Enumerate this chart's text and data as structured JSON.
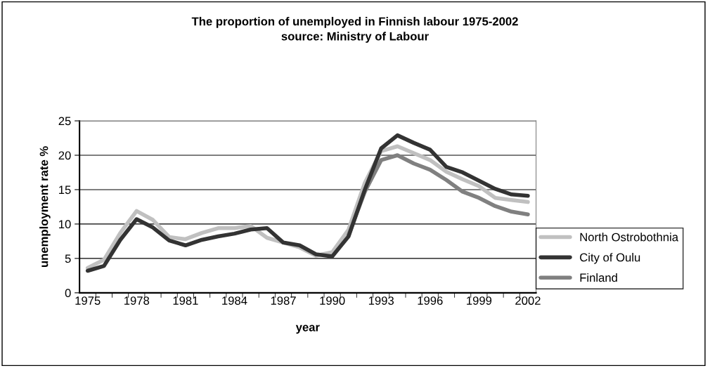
{
  "chart_data": {
    "type": "line",
    "title": "The proportion of unemployed in Finnish labour 1975-2002",
    "subtitle": "source: Ministry of Labour",
    "xlabel": "year",
    "ylabel": "unemployment rate %",
    "categories": [
      "1975",
      null,
      null,
      "1978",
      null,
      null,
      "1981",
      null,
      null,
      "1984",
      null,
      null,
      "1987",
      null,
      null,
      "1990",
      null,
      null,
      "1993",
      null,
      null,
      "1996",
      null,
      null,
      "1999",
      null,
      null,
      "2002"
    ],
    "series": [
      {
        "name": "North Ostrobothnia",
        "color": "#c0c0c0",
        "values": [
          3.6,
          4.8,
          8.7,
          11.9,
          10.6,
          8.1,
          7.8,
          8.7,
          9.4,
          9.4,
          9.7,
          8.0,
          7.3,
          6.6,
          5.4,
          5.9,
          9.2,
          16.0,
          20.6,
          21.3,
          20.3,
          19.3,
          17.6,
          16.5,
          15.5,
          13.8,
          13.5,
          13.2
        ]
      },
      {
        "name": "City of Oulu",
        "color": "#333333",
        "values": [
          3.2,
          3.9,
          7.7,
          10.7,
          9.5,
          7.6,
          6.9,
          7.7,
          8.2,
          8.6,
          9.2,
          9.4,
          7.3,
          6.9,
          5.6,
          5.3,
          8.2,
          15.0,
          21.0,
          22.9,
          21.8,
          20.8,
          18.3,
          17.5,
          16.3,
          15.1,
          14.3,
          14.1
        ]
      },
      {
        "name": "Finland",
        "color": "#808080",
        "values": [
          null,
          null,
          null,
          null,
          null,
          null,
          null,
          null,
          null,
          null,
          null,
          null,
          null,
          null,
          null,
          null,
          8.4,
          14.7,
          19.3,
          20.0,
          18.8,
          17.9,
          16.4,
          14.7,
          13.8,
          12.6,
          11.8,
          11.4
        ]
      }
    ],
    "ylim": [
      0,
      25
    ],
    "yticks": [
      0,
      5,
      10,
      15,
      20,
      25
    ],
    "grid": "y",
    "legend": "right",
    "marker": "none",
    "line_style": "solid"
  }
}
